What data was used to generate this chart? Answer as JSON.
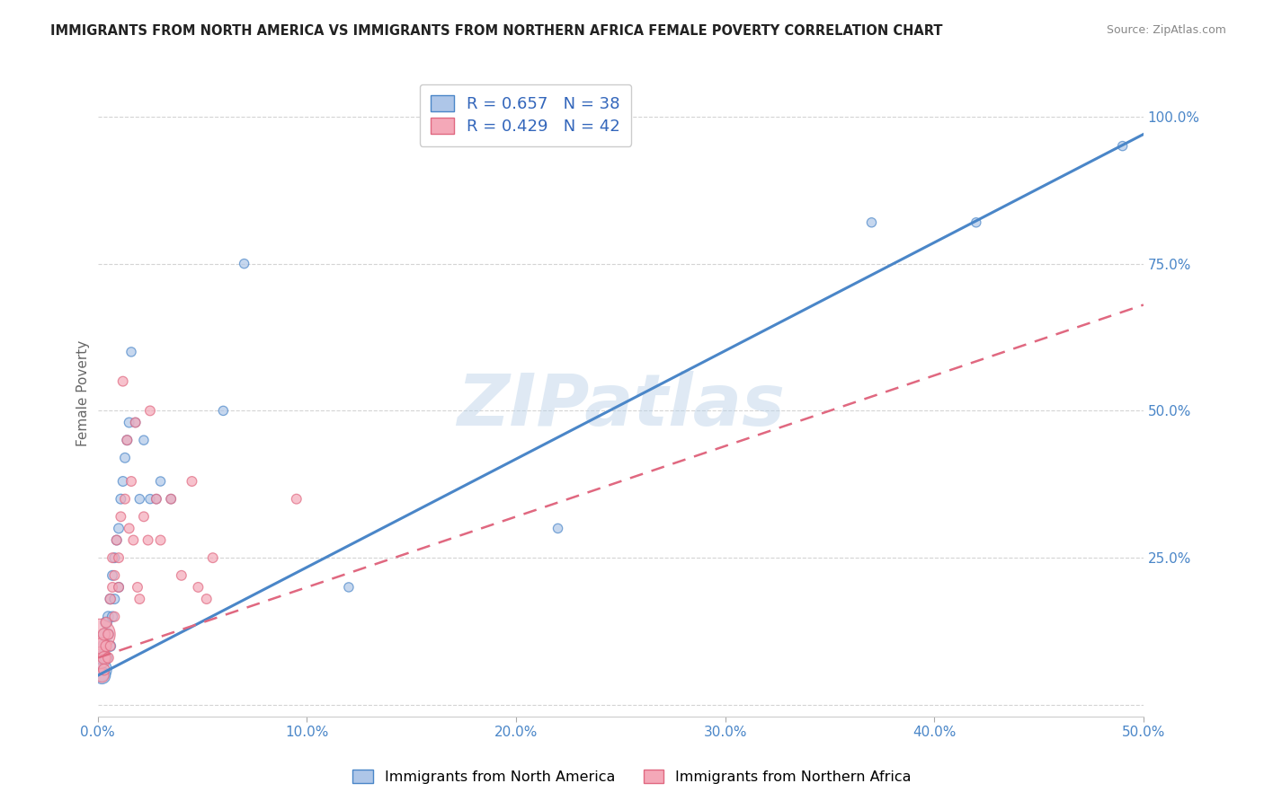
{
  "title": "IMMIGRANTS FROM NORTH AMERICA VS IMMIGRANTS FROM NORTHERN AFRICA FEMALE POVERTY CORRELATION CHART",
  "source": "Source: ZipAtlas.com",
  "ylabel": "Female Poverty",
  "blue_R": 0.657,
  "blue_N": 38,
  "pink_R": 0.429,
  "pink_N": 42,
  "blue_label": "Immigrants from North America",
  "pink_label": "Immigrants from Northern Africa",
  "blue_color": "#aec6e8",
  "pink_color": "#f4a8b8",
  "blue_line_color": "#4a86c8",
  "pink_line_color": "#e06880",
  "blue_x": [
    0.001,
    0.002,
    0.002,
    0.003,
    0.003,
    0.004,
    0.004,
    0.005,
    0.005,
    0.006,
    0.006,
    0.007,
    0.007,
    0.008,
    0.008,
    0.009,
    0.01,
    0.01,
    0.011,
    0.012,
    0.013,
    0.014,
    0.015,
    0.016,
    0.018,
    0.02,
    0.022,
    0.025,
    0.028,
    0.03,
    0.035,
    0.06,
    0.07,
    0.12,
    0.22,
    0.37,
    0.42,
    0.49
  ],
  "blue_y": [
    0.06,
    0.05,
    0.08,
    0.1,
    0.12,
    0.08,
    0.14,
    0.12,
    0.15,
    0.1,
    0.18,
    0.15,
    0.22,
    0.18,
    0.25,
    0.28,
    0.3,
    0.2,
    0.35,
    0.38,
    0.42,
    0.45,
    0.48,
    0.6,
    0.48,
    0.35,
    0.45,
    0.35,
    0.35,
    0.38,
    0.35,
    0.5,
    0.75,
    0.2,
    0.3,
    0.82,
    0.82,
    0.95
  ],
  "blue_sizes": [
    350,
    180,
    120,
    100,
    80,
    90,
    80,
    75,
    70,
    70,
    65,
    65,
    60,
    60,
    60,
    60,
    60,
    60,
    60,
    60,
    60,
    60,
    60,
    55,
    55,
    55,
    55,
    55,
    55,
    55,
    55,
    55,
    55,
    55,
    55,
    55,
    55,
    55
  ],
  "pink_x": [
    0.001,
    0.001,
    0.002,
    0.002,
    0.003,
    0.003,
    0.003,
    0.004,
    0.004,
    0.005,
    0.005,
    0.006,
    0.006,
    0.007,
    0.007,
    0.008,
    0.008,
    0.009,
    0.01,
    0.01,
    0.011,
    0.012,
    0.013,
    0.014,
    0.015,
    0.016,
    0.017,
    0.018,
    0.019,
    0.02,
    0.022,
    0.024,
    0.025,
    0.028,
    0.03,
    0.035,
    0.04,
    0.045,
    0.048,
    0.052,
    0.055,
    0.095
  ],
  "pink_y": [
    0.12,
    0.08,
    0.1,
    0.05,
    0.08,
    0.12,
    0.06,
    0.1,
    0.14,
    0.08,
    0.12,
    0.18,
    0.1,
    0.2,
    0.25,
    0.22,
    0.15,
    0.28,
    0.2,
    0.25,
    0.32,
    0.55,
    0.35,
    0.45,
    0.3,
    0.38,
    0.28,
    0.48,
    0.2,
    0.18,
    0.32,
    0.28,
    0.5,
    0.35,
    0.28,
    0.35,
    0.22,
    0.38,
    0.2,
    0.18,
    0.25,
    0.35
  ],
  "pink_sizes": [
    600,
    300,
    180,
    120,
    100,
    90,
    80,
    75,
    70,
    70,
    65,
    65,
    60,
    60,
    60,
    60,
    60,
    60,
    60,
    60,
    60,
    60,
    60,
    60,
    60,
    60,
    60,
    60,
    60,
    60,
    60,
    60,
    60,
    60,
    60,
    60,
    60,
    60,
    60,
    60,
    60,
    60
  ],
  "blue_reg": [
    0.05,
    0.97
  ],
  "pink_reg": [
    0.08,
    0.68
  ],
  "xlim": [
    0.0,
    0.5
  ],
  "ylim": [
    -0.02,
    1.08
  ],
  "xticks": [
    0.0,
    0.1,
    0.2,
    0.3,
    0.4,
    0.5
  ],
  "yticks": [
    0.0,
    0.25,
    0.5,
    0.75,
    1.0
  ],
  "ytick_labels_right": [
    "",
    "25.0%",
    "50.0%",
    "75.0%",
    "100.0%"
  ],
  "xtick_labels": [
    "0.0%",
    "10.0%",
    "20.0%",
    "30.0%",
    "40.0%",
    "50.0%"
  ],
  "watermark": "ZIPatlas",
  "background_color": "#ffffff",
  "grid_color": "#d0d0d0"
}
